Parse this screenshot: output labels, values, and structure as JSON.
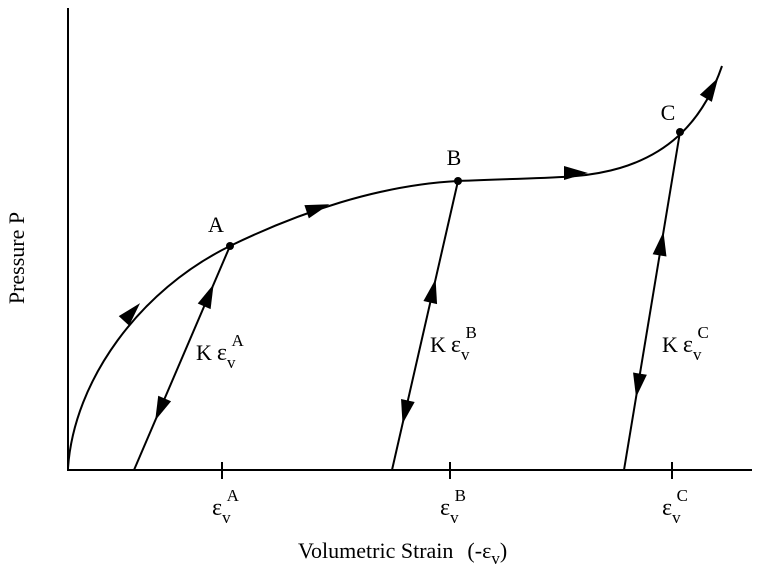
{
  "axes": {
    "y_label": "Pressure P",
    "x_label": "Volumetric Strain",
    "x_label_symbol": {
      "open": "(-ε",
      "sub": "v",
      "close": ")"
    }
  },
  "points": [
    {
      "label": "A"
    },
    {
      "label": "B"
    },
    {
      "label": "C"
    }
  ],
  "unloading_lines": [
    {
      "coefficient": "K",
      "symbol": "ε",
      "sub": "v",
      "sup": "A"
    },
    {
      "coefficient": "K",
      "symbol": "ε",
      "sub": "v",
      "sup": "B"
    },
    {
      "coefficient": "K",
      "symbol": "ε",
      "sub": "v",
      "sup": "C"
    }
  ],
  "ticks": [
    {
      "symbol": "ε",
      "sub": "v",
      "sup": "A"
    },
    {
      "symbol": "ε",
      "sub": "v",
      "sup": "B"
    },
    {
      "symbol": "ε",
      "sub": "v",
      "sup": "C"
    }
  ]
}
